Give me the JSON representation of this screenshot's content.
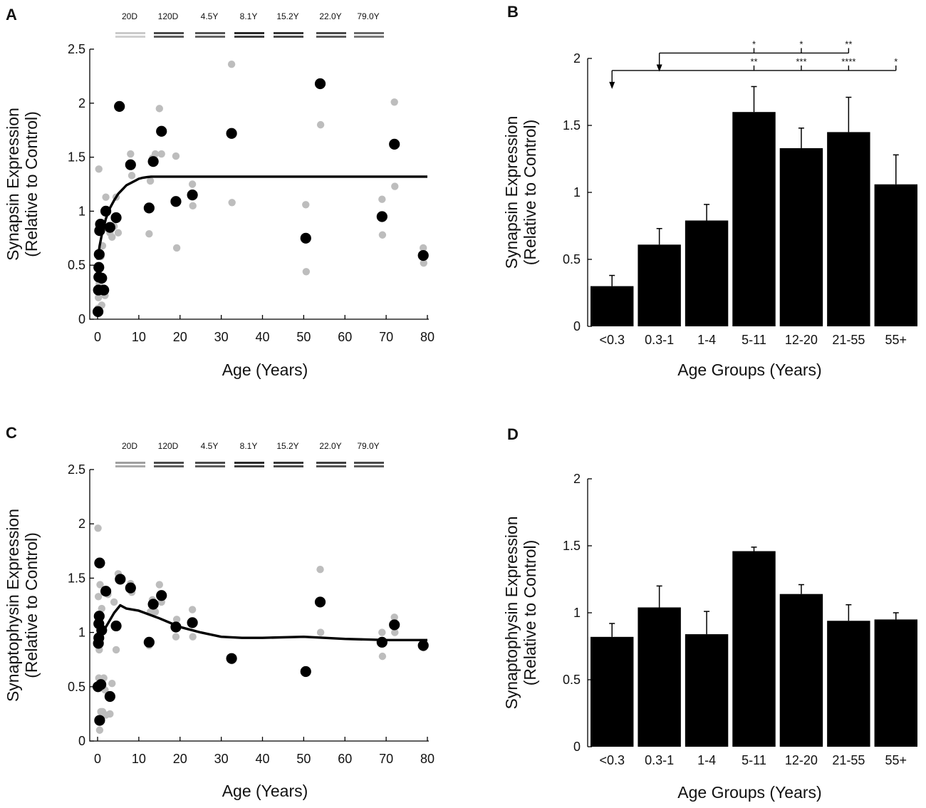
{
  "colors": {
    "ink": "#000000",
    "replicate": "#bdbdbd",
    "blot": "#2a2a2a"
  },
  "chart_data": [
    {
      "panel": "A",
      "type": "scatter",
      "xlabel": "Age (Years)",
      "ylabel_line1": "Synapsin Expression",
      "ylabel_line2": "(Relative to Control)",
      "xlim": [
        0,
        80
      ],
      "ylim": [
        0,
        2.5
      ],
      "xticks": [
        0,
        10,
        20,
        30,
        40,
        50,
        60,
        70,
        80
      ],
      "yticks": [
        0,
        0.5,
        1,
        1.5,
        2,
        2.5
      ],
      "ytick_labels": [
        "0",
        "0.5",
        "1",
        "1.5",
        "2",
        "2.5"
      ],
      "blot_labels": [
        "20D",
        "120D",
        "4.5Y",
        "8.1Y",
        "15.2Y",
        "22.0Y",
        "79.0Y"
      ],
      "blot_intensity": [
        0.25,
        0.85,
        0.8,
        1.0,
        0.95,
        0.85,
        0.7
      ],
      "means": {
        "x": [
          0.1,
          0.2,
          0.3,
          0.3,
          0.4,
          0.5,
          0.7,
          1.0,
          1.5,
          2.0,
          3.0,
          4.5,
          5.3,
          8.0,
          12.5,
          13.5,
          15.5,
          19.0,
          23.0,
          32.5,
          50.5,
          54.0,
          69.0,
          72.0,
          79.0
        ],
        "y": [
          0.07,
          0.27,
          0.39,
          0.48,
          0.6,
          0.82,
          0.88,
          0.38,
          0.27,
          1.0,
          0.85,
          0.94,
          1.97,
          1.43,
          1.03,
          1.46,
          1.74,
          1.09,
          1.15,
          1.72,
          0.75,
          2.18,
          0.95,
          1.62,
          0.59
        ]
      },
      "replicates": {
        "x": [
          0.1,
          0.2,
          0.3,
          0.4,
          0.5,
          0.6,
          0.8,
          1.0,
          1.2,
          1.5,
          1.8,
          2.0,
          2.5,
          3.0,
          3.5,
          4.0,
          4.5,
          5.0,
          8.0,
          8.3,
          12.5,
          12.8,
          13.3,
          14.0,
          15.0,
          15.5,
          19.0,
          19.2,
          23.0,
          23.1,
          32.5,
          32.6,
          50.5,
          50.6,
          54.0,
          54.1,
          69.0,
          69.1,
          72.0,
          72.1,
          79.0,
          79.1
        ],
        "y": [
          0.1,
          0.2,
          1.39,
          0.33,
          0.6,
          0.88,
          0.58,
          0.13,
          0.68,
          0.27,
          0.22,
          1.13,
          0.84,
          0.8,
          0.76,
          0.86,
          1.13,
          0.8,
          1.53,
          1.33,
          0.79,
          1.28,
          1.49,
          1.53,
          1.95,
          1.53,
          1.51,
          0.66,
          1.25,
          1.05,
          2.36,
          1.08,
          1.06,
          0.44,
          2.18,
          1.8,
          1.11,
          0.78,
          2.01,
          1.23,
          0.66,
          0.52
        ]
      },
      "fit": {
        "x": [
          0,
          0.5,
          1,
          2,
          3,
          4,
          5,
          6,
          7,
          8,
          9,
          10,
          11,
          12,
          13,
          14,
          15,
          20,
          30,
          40,
          50,
          60,
          70,
          80
        ],
        "y": [
          0.55,
          0.68,
          0.78,
          0.93,
          1.03,
          1.1,
          1.16,
          1.2,
          1.24,
          1.26,
          1.28,
          1.3,
          1.31,
          1.315,
          1.32,
          1.32,
          1.32,
          1.32,
          1.32,
          1.32,
          1.32,
          1.32,
          1.32,
          1.32
        ]
      }
    },
    {
      "panel": "B",
      "type": "bar",
      "xlabel": "Age Groups (Years)",
      "ylabel_line1": "Synapsin Expression",
      "ylabel_line2": "(Relative to Control)",
      "ylim": [
        0,
        2
      ],
      "yticks": [
        0,
        0.5,
        1,
        1.5,
        2
      ],
      "ytick_labels": [
        "0",
        "0.5",
        "1",
        "1.5",
        "2"
      ],
      "categories": [
        "<0.3",
        "0.3-1",
        "1-4",
        "5-11",
        "12-20",
        "21-55",
        "55+"
      ],
      "values": [
        0.3,
        0.61,
        0.79,
        1.6,
        1.33,
        1.45,
        1.06
      ],
      "errors": [
        0.08,
        0.12,
        0.12,
        0.19,
        0.15,
        0.26,
        0.22
      ],
      "comparisons": [
        {
          "from": 1,
          "y": 2.04,
          "targets": [
            3,
            4,
            5
          ],
          "labels": [
            "*",
            "*",
            "**"
          ]
        },
        {
          "from": 0,
          "y": 1.91,
          "targets": [
            3,
            4,
            5,
            6
          ],
          "labels": [
            "**",
            "***",
            "****",
            "*"
          ]
        }
      ]
    },
    {
      "panel": "C",
      "type": "scatter",
      "xlabel": "Age (Years)",
      "ylabel_line1": "Synaptophysin Expression",
      "ylabel_line2": "(Relative to Control)",
      "xlim": [
        0,
        80
      ],
      "ylim": [
        0,
        2.5
      ],
      "xticks": [
        0,
        10,
        20,
        30,
        40,
        50,
        60,
        70,
        80
      ],
      "yticks": [
        0,
        0.5,
        1,
        1.5,
        2,
        2.5
      ],
      "ytick_labels": [
        "0",
        "0.5",
        "1",
        "1.5",
        "2",
        "2.5"
      ],
      "blot_labels": [
        "20D",
        "120D",
        "4.5Y",
        "8.1Y",
        "15.2Y",
        "22.0Y",
        "79.0Y"
      ],
      "blot_intensity": [
        0.45,
        0.85,
        0.85,
        1.0,
        0.95,
        0.9,
        0.85
      ],
      "means": {
        "x": [
          0.1,
          0.2,
          0.3,
          0.3,
          0.4,
          0.5,
          0.5,
          0.8,
          1.0,
          2.0,
          3.0,
          4.5,
          5.5,
          8.0,
          12.5,
          13.5,
          15.5,
          19.0,
          23.0,
          32.5,
          50.5,
          54.0,
          69.0,
          72.0,
          79.0
        ],
        "y": [
          0.5,
          0.9,
          0.95,
          1.08,
          1.15,
          1.64,
          0.19,
          0.52,
          1.02,
          1.38,
          0.41,
          1.06,
          1.49,
          1.41,
          0.91,
          1.26,
          1.34,
          1.05,
          1.09,
          0.76,
          0.64,
          1.28,
          0.91,
          1.07,
          0.88
        ]
      },
      "replicates": {
        "x": [
          0.1,
          0.2,
          0.3,
          0.4,
          0.5,
          0.6,
          0.8,
          1.0,
          1.2,
          1.5,
          1.8,
          2.0,
          2.5,
          3.0,
          3.5,
          4.0,
          4.5,
          5.0,
          5.5,
          8.0,
          8.3,
          12.5,
          12.8,
          13.3,
          14.0,
          15.0,
          15.5,
          19.0,
          19.2,
          23.0,
          23.1,
          32.5,
          32.6,
          50.5,
          50.6,
          54.0,
          54.1,
          69.0,
          69.1,
          72.0,
          72.1,
          79.0,
          79.1
        ],
        "y": [
          1.96,
          1.33,
          0.58,
          0.84,
          0.1,
          1.44,
          0.27,
          1.22,
          0.27,
          0.58,
          0.47,
          0.24,
          1.35,
          0.25,
          0.53,
          1.28,
          0.84,
          1.54,
          1.5,
          1.45,
          1.37,
          0.88,
          1.19,
          1.3,
          1.19,
          1.44,
          1.28,
          0.96,
          1.12,
          1.21,
          0.96,
          0.76,
          0.74,
          0.65,
          0.63,
          1.58,
          1.0,
          1.0,
          0.78,
          1.14,
          1.0,
          0.88,
          0.86
        ]
      },
      "fit": {
        "x": [
          0,
          2,
          4,
          5.5,
          7,
          10,
          15,
          20,
          25,
          30,
          35,
          40,
          50,
          60,
          70,
          80
        ],
        "y": [
          0.88,
          1.05,
          1.18,
          1.25,
          1.22,
          1.2,
          1.13,
          1.05,
          1.0,
          0.96,
          0.95,
          0.95,
          0.96,
          0.94,
          0.93,
          0.93
        ]
      }
    },
    {
      "panel": "D",
      "type": "bar",
      "xlabel": "Age Groups (Years)",
      "ylabel_line1": "Synaptophysin Expression",
      "ylabel_line2": "(Relative to Control)",
      "ylim": [
        0,
        2
      ],
      "yticks": [
        0,
        0.5,
        1,
        1.5,
        2
      ],
      "ytick_labels": [
        "0",
        "0.5",
        "1",
        "1.5",
        "2"
      ],
      "categories": [
        "<0.3",
        "0.3-1",
        "1-4",
        "5-11",
        "12-20",
        "21-55",
        "55+"
      ],
      "values": [
        0.82,
        1.04,
        0.84,
        1.46,
        1.14,
        0.94,
        0.95
      ],
      "errors": [
        0.1,
        0.16,
        0.17,
        0.03,
        0.07,
        0.12,
        0.05
      ],
      "comparisons": []
    }
  ]
}
